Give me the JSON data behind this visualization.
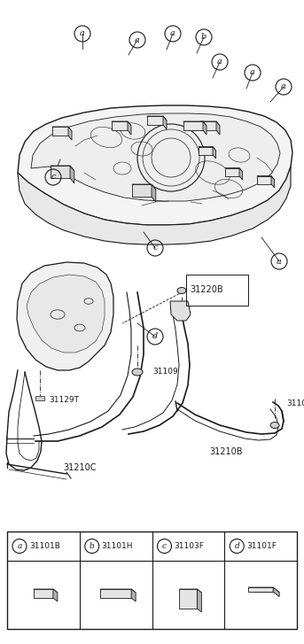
{
  "bg_color": "#ffffff",
  "line_color": "#1a1a1a",
  "fig_w": 3.43,
  "fig_h": 7.27,
  "dpi": 100,
  "legend": [
    {
      "label": "a",
      "part": "31101B"
    },
    {
      "label": "b",
      "part": "31101H"
    },
    {
      "label": "c",
      "part": "31103F"
    },
    {
      "label": "d",
      "part": "31101F"
    }
  ]
}
